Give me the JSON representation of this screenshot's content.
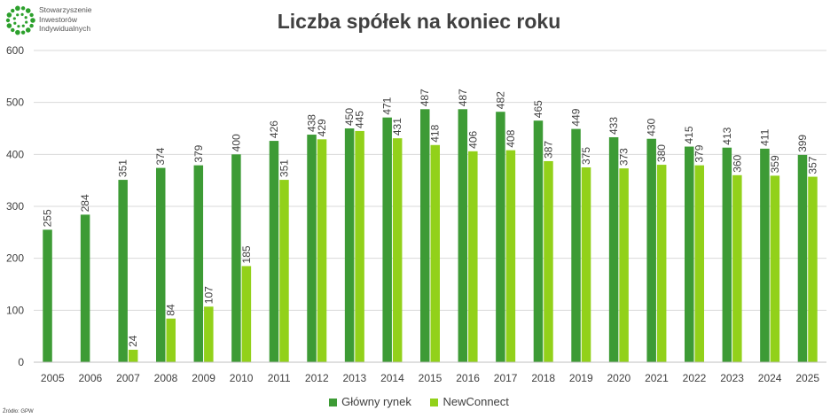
{
  "logo": {
    "text": "Stowarzyszenie\nInwestorów\nIndywidualnych",
    "color": "#2ca02c"
  },
  "source": "Źródło: GPW",
  "chart_data": {
    "type": "bar",
    "title": "Liczba spółek na koniec roku",
    "categories": [
      "2005",
      "2006",
      "2007",
      "2008",
      "2009",
      "2010",
      "2011",
      "2012",
      "2013",
      "2014",
      "2015",
      "2016",
      "2017",
      "2018",
      "2019",
      "2020",
      "2021",
      "2022",
      "2023",
      "2024",
      "2025"
    ],
    "series": [
      {
        "name": "Główny rynek",
        "color": "#3d9b35",
        "values": [
          255,
          284,
          351,
          374,
          379,
          400,
          426,
          438,
          450,
          471,
          487,
          487,
          482,
          465,
          449,
          433,
          430,
          415,
          413,
          411,
          399
        ]
      },
      {
        "name": "NewConnect",
        "color": "#92d11a",
        "values": [
          null,
          null,
          24,
          84,
          107,
          185,
          351,
          429,
          445,
          431,
          418,
          406,
          408,
          387,
          375,
          373,
          380,
          379,
          360,
          359,
          357
        ]
      }
    ],
    "ylim": [
      0,
      600
    ],
    "yticks": [
      0,
      100,
      200,
      300,
      400,
      500,
      600
    ],
    "grid": true,
    "legend": "bottom"
  }
}
